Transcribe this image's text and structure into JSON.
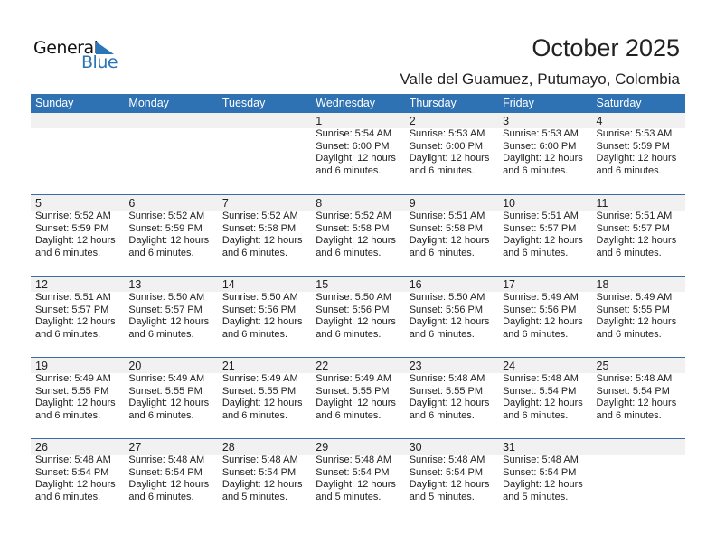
{
  "logo": {
    "word1": "General",
    "word2": "Blue"
  },
  "header": {
    "title": "October 2025",
    "location": "Valle del Guamuez, Putumayo, Colombia"
  },
  "colors": {
    "accent": "#2e72b3",
    "date_band": "#f1f1f1"
  },
  "weekdays": [
    "Sunday",
    "Monday",
    "Tuesday",
    "Wednesday",
    "Thursday",
    "Friday",
    "Saturday"
  ],
  "weeks": [
    [
      null,
      null,
      null,
      {
        "day": "1",
        "sunrise": "Sunrise: 5:54 AM",
        "sunset": "Sunset: 6:00 PM",
        "daylight": "Daylight: 12 hours",
        "minutes": "and 6 minutes."
      },
      {
        "day": "2",
        "sunrise": "Sunrise: 5:53 AM",
        "sunset": "Sunset: 6:00 PM",
        "daylight": "Daylight: 12 hours",
        "minutes": "and 6 minutes."
      },
      {
        "day": "3",
        "sunrise": "Sunrise: 5:53 AM",
        "sunset": "Sunset: 6:00 PM",
        "daylight": "Daylight: 12 hours",
        "minutes": "and 6 minutes."
      },
      {
        "day": "4",
        "sunrise": "Sunrise: 5:53 AM",
        "sunset": "Sunset: 5:59 PM",
        "daylight": "Daylight: 12 hours",
        "minutes": "and 6 minutes."
      }
    ],
    [
      {
        "day": "5",
        "sunrise": "Sunrise: 5:52 AM",
        "sunset": "Sunset: 5:59 PM",
        "daylight": "Daylight: 12 hours",
        "minutes": "and 6 minutes."
      },
      {
        "day": "6",
        "sunrise": "Sunrise: 5:52 AM",
        "sunset": "Sunset: 5:59 PM",
        "daylight": "Daylight: 12 hours",
        "minutes": "and 6 minutes."
      },
      {
        "day": "7",
        "sunrise": "Sunrise: 5:52 AM",
        "sunset": "Sunset: 5:58 PM",
        "daylight": "Daylight: 12 hours",
        "minutes": "and 6 minutes."
      },
      {
        "day": "8",
        "sunrise": "Sunrise: 5:52 AM",
        "sunset": "Sunset: 5:58 PM",
        "daylight": "Daylight: 12 hours",
        "minutes": "and 6 minutes."
      },
      {
        "day": "9",
        "sunrise": "Sunrise: 5:51 AM",
        "sunset": "Sunset: 5:58 PM",
        "daylight": "Daylight: 12 hours",
        "minutes": "and 6 minutes."
      },
      {
        "day": "10",
        "sunrise": "Sunrise: 5:51 AM",
        "sunset": "Sunset: 5:57 PM",
        "daylight": "Daylight: 12 hours",
        "minutes": "and 6 minutes."
      },
      {
        "day": "11",
        "sunrise": "Sunrise: 5:51 AM",
        "sunset": "Sunset: 5:57 PM",
        "daylight": "Daylight: 12 hours",
        "minutes": "and 6 minutes."
      }
    ],
    [
      {
        "day": "12",
        "sunrise": "Sunrise: 5:51 AM",
        "sunset": "Sunset: 5:57 PM",
        "daylight": "Daylight: 12 hours",
        "minutes": "and 6 minutes."
      },
      {
        "day": "13",
        "sunrise": "Sunrise: 5:50 AM",
        "sunset": "Sunset: 5:57 PM",
        "daylight": "Daylight: 12 hours",
        "minutes": "and 6 minutes."
      },
      {
        "day": "14",
        "sunrise": "Sunrise: 5:50 AM",
        "sunset": "Sunset: 5:56 PM",
        "daylight": "Daylight: 12 hours",
        "minutes": "and 6 minutes."
      },
      {
        "day": "15",
        "sunrise": "Sunrise: 5:50 AM",
        "sunset": "Sunset: 5:56 PM",
        "daylight": "Daylight: 12 hours",
        "minutes": "and 6 minutes."
      },
      {
        "day": "16",
        "sunrise": "Sunrise: 5:50 AM",
        "sunset": "Sunset: 5:56 PM",
        "daylight": "Daylight: 12 hours",
        "minutes": "and 6 minutes."
      },
      {
        "day": "17",
        "sunrise": "Sunrise: 5:49 AM",
        "sunset": "Sunset: 5:56 PM",
        "daylight": "Daylight: 12 hours",
        "minutes": "and 6 minutes."
      },
      {
        "day": "18",
        "sunrise": "Sunrise: 5:49 AM",
        "sunset": "Sunset: 5:55 PM",
        "daylight": "Daylight: 12 hours",
        "minutes": "and 6 minutes."
      }
    ],
    [
      {
        "day": "19",
        "sunrise": "Sunrise: 5:49 AM",
        "sunset": "Sunset: 5:55 PM",
        "daylight": "Daylight: 12 hours",
        "minutes": "and 6 minutes."
      },
      {
        "day": "20",
        "sunrise": "Sunrise: 5:49 AM",
        "sunset": "Sunset: 5:55 PM",
        "daylight": "Daylight: 12 hours",
        "minutes": "and 6 minutes."
      },
      {
        "day": "21",
        "sunrise": "Sunrise: 5:49 AM",
        "sunset": "Sunset: 5:55 PM",
        "daylight": "Daylight: 12 hours",
        "minutes": "and 6 minutes."
      },
      {
        "day": "22",
        "sunrise": "Sunrise: 5:49 AM",
        "sunset": "Sunset: 5:55 PM",
        "daylight": "Daylight: 12 hours",
        "minutes": "and 6 minutes."
      },
      {
        "day": "23",
        "sunrise": "Sunrise: 5:48 AM",
        "sunset": "Sunset: 5:55 PM",
        "daylight": "Daylight: 12 hours",
        "minutes": "and 6 minutes."
      },
      {
        "day": "24",
        "sunrise": "Sunrise: 5:48 AM",
        "sunset": "Sunset: 5:54 PM",
        "daylight": "Daylight: 12 hours",
        "minutes": "and 6 minutes."
      },
      {
        "day": "25",
        "sunrise": "Sunrise: 5:48 AM",
        "sunset": "Sunset: 5:54 PM",
        "daylight": "Daylight: 12 hours",
        "minutes": "and 6 minutes."
      }
    ],
    [
      {
        "day": "26",
        "sunrise": "Sunrise: 5:48 AM",
        "sunset": "Sunset: 5:54 PM",
        "daylight": "Daylight: 12 hours",
        "minutes": "and 6 minutes."
      },
      {
        "day": "27",
        "sunrise": "Sunrise: 5:48 AM",
        "sunset": "Sunset: 5:54 PM",
        "daylight": "Daylight: 12 hours",
        "minutes": "and 6 minutes."
      },
      {
        "day": "28",
        "sunrise": "Sunrise: 5:48 AM",
        "sunset": "Sunset: 5:54 PM",
        "daylight": "Daylight: 12 hours",
        "minutes": "and 5 minutes."
      },
      {
        "day": "29",
        "sunrise": "Sunrise: 5:48 AM",
        "sunset": "Sunset: 5:54 PM",
        "daylight": "Daylight: 12 hours",
        "minutes": "and 5 minutes."
      },
      {
        "day": "30",
        "sunrise": "Sunrise: 5:48 AM",
        "sunset": "Sunset: 5:54 PM",
        "daylight": "Daylight: 12 hours",
        "minutes": "and 5 minutes."
      },
      {
        "day": "31",
        "sunrise": "Sunrise: 5:48 AM",
        "sunset": "Sunset: 5:54 PM",
        "daylight": "Daylight: 12 hours",
        "minutes": "and 5 minutes."
      },
      null
    ]
  ]
}
